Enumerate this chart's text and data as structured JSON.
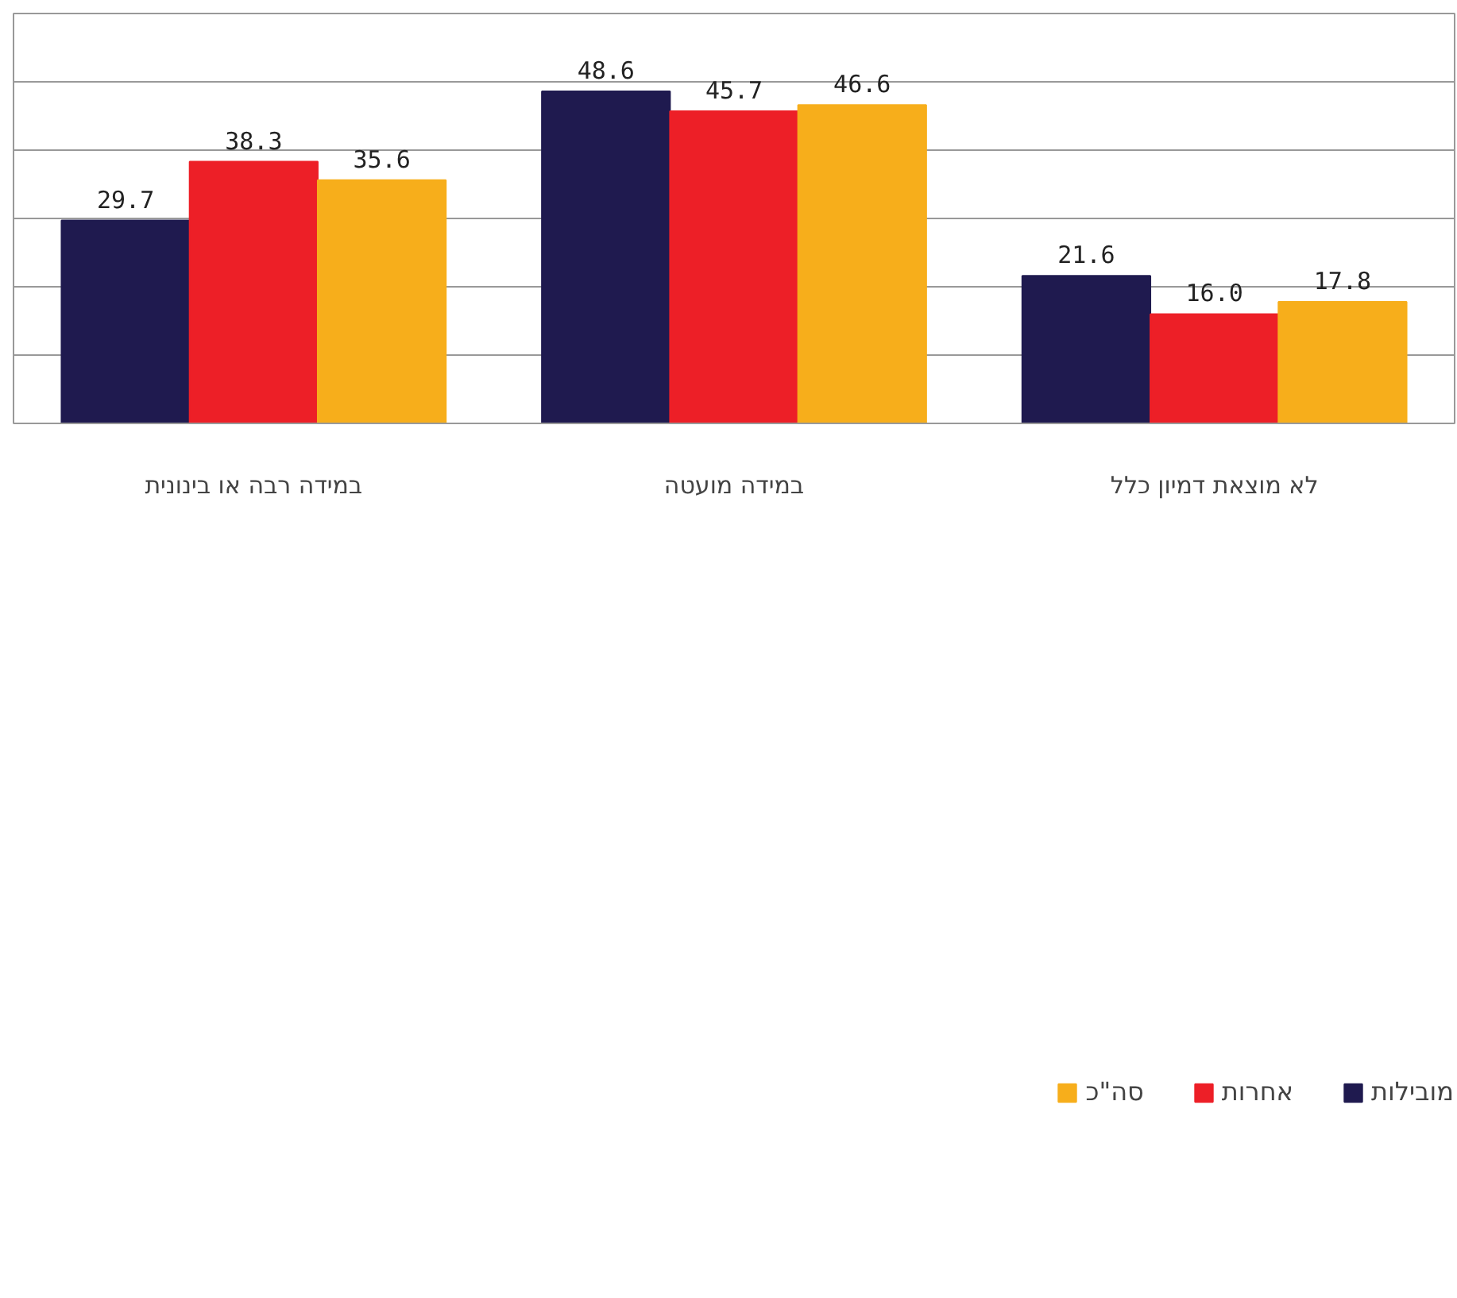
{
  "chart_data": {
    "type": "bar",
    "categories": [
      "במידה רבה או בינונית",
      "במידה מועטה",
      "לא מוצאת דמיון כלל"
    ],
    "series": [
      {
        "name": "מובילות",
        "color": "#1f1a4f",
        "values": [
          29.7,
          48.6,
          21.6
        ],
        "value_labels": [
          "29.7",
          "48.6",
          "21.6"
        ]
      },
      {
        "name": "אחרות",
        "color": "#ed1f27",
        "values": [
          38.3,
          45.7,
          16.0
        ],
        "value_labels": [
          "38.3",
          "45.7",
          "16.0"
        ]
      },
      {
        "name": "סה\"כ",
        "color": "#f7ae1b",
        "values": [
          35.6,
          46.6,
          17.8
        ],
        "value_labels": [
          "35.6",
          "46.6",
          "17.8"
        ]
      }
    ],
    "ylim": [
      0,
      60
    ],
    "yticks": [
      {
        "value": 0,
        "label": null
      },
      {
        "value": 10,
        "label": null
      },
      {
        "value": 20,
        "label": null
      },
      {
        "value": 30,
        "label": null
      },
      {
        "value": 40,
        "label": null
      },
      {
        "value": 50,
        "label": null
      }
    ],
    "tick_labels": "x",
    "grid": "y",
    "legend": "bottom"
  }
}
